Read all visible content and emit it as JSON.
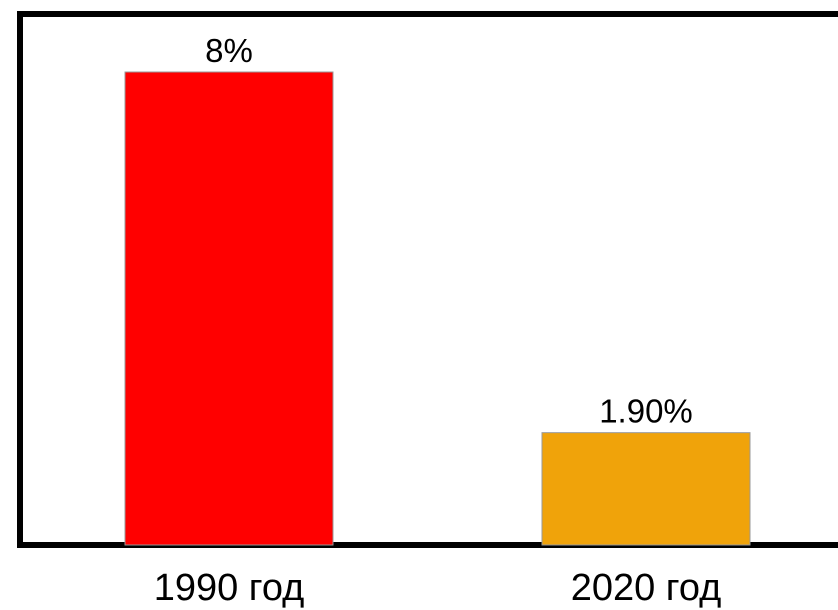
{
  "chart_data": {
    "type": "bar",
    "categories": [
      "1990 год",
      "2020 год"
    ],
    "values": [
      8,
      1.9
    ],
    "data_labels": [
      "8%",
      "1.90%"
    ],
    "colors": [
      "#ff0000",
      "#f0a30a"
    ],
    "ylim": [
      0,
      8
    ],
    "grid": false,
    "title": "",
    "xlabel": "",
    "ylabel": ""
  }
}
